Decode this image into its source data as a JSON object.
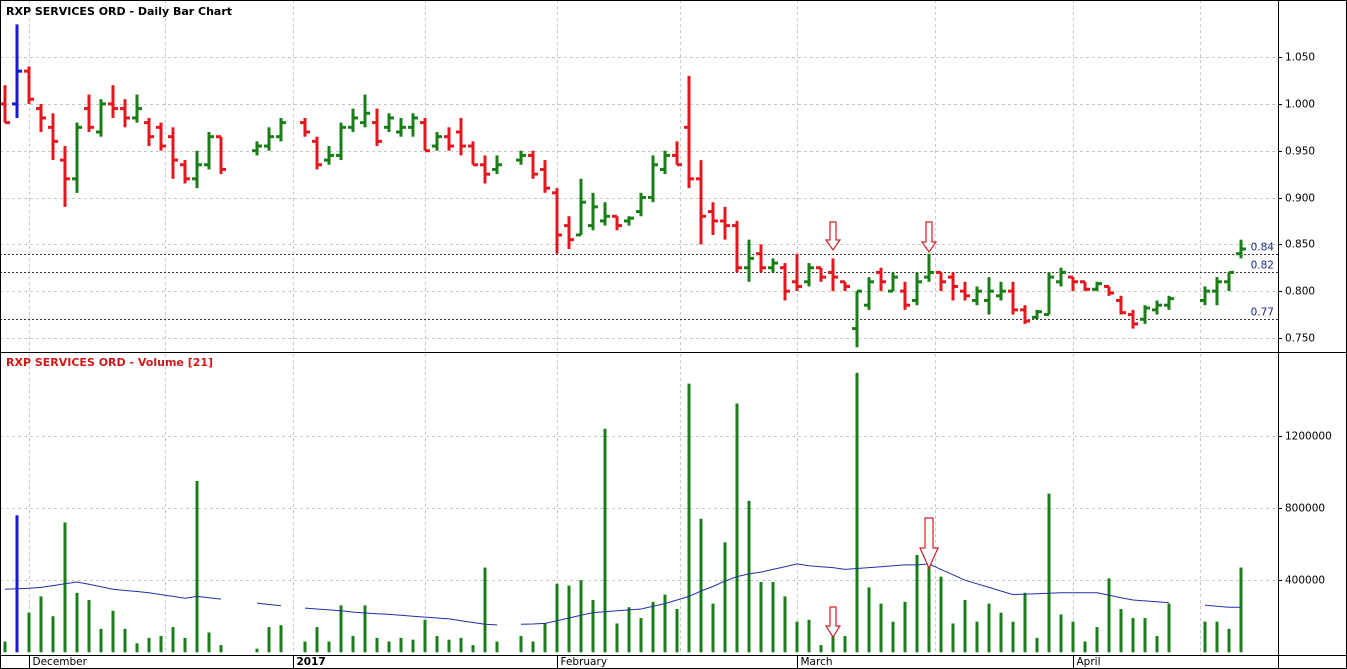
{
  "chart_data": [
    {
      "type": "ohlc",
      "title": "RXP SERVICES ORD - Daily Bar Chart",
      "open": [
        1.0,
        1.0,
        1.035,
        0.995,
        0.975,
        0.94,
        0.92,
        0.995,
        0.97,
        1.0,
        0.995,
        0.985,
        0.98,
        0.975,
        0.965,
        0.935,
        0.92,
        0.935,
        0.965,
        null,
        null,
        0.95,
        0.955,
        0.965,
        null,
        0.98,
        0.96,
        0.94,
        0.945,
        0.975,
        0.98,
        0.98,
        0.975,
        0.97,
        0.975,
        0.98,
        0.955,
        0.965,
        0.97,
        0.955,
        0.935,
        0.93,
        null,
        0.94,
        0.945,
        0.93,
        0.905,
        0.87,
        0.86,
        0.87,
        0.875,
        0.88,
        0.875,
        0.885,
        0.9,
        0.93,
        0.945,
        0.975,
        0.92,
        0.885,
        0.875,
        0.87,
        0.825,
        0.84,
        0.825,
        0.825,
        0.81,
        0.81,
        0.825,
        0.82,
        0.81,
        0.76,
        0.785,
        0.82,
        0.8,
        0.8,
        0.79,
        0.815,
        0.82,
        0.815,
        0.8,
        0.79,
        0.79,
        0.795,
        0.8,
        0.78,
        0.772,
        0.775,
        0.81,
        0.815,
        0.81,
        0.802,
        0.805,
        0.79,
        0.775,
        0.77,
        0.78,
        0.785,
        null,
        null,
        0.79,
        0.8,
        0.81,
        0.84
      ],
      "high": [
        1.02,
        1.085,
        1.04,
        1.0,
        0.99,
        0.955,
        0.98,
        1.01,
        1.005,
        1.02,
        1.005,
        1.01,
        0.985,
        0.98,
        0.975,
        0.94,
        0.95,
        0.97,
        0.965,
        null,
        null,
        0.96,
        0.975,
        0.985,
        null,
        0.985,
        0.965,
        0.955,
        0.98,
        0.995,
        1.01,
        0.995,
        0.99,
        0.985,
        0.99,
        0.985,
        0.97,
        0.975,
        0.985,
        0.96,
        0.945,
        0.945,
        null,
        0.95,
        0.95,
        0.94,
        0.91,
        0.88,
        0.92,
        0.905,
        0.895,
        0.88,
        0.88,
        0.905,
        0.945,
        0.95,
        0.96,
        1.03,
        0.94,
        0.895,
        0.89,
        0.875,
        0.855,
        0.85,
        0.835,
        0.83,
        0.84,
        0.83,
        0.825,
        0.835,
        0.81,
        0.8,
        0.815,
        0.825,
        0.82,
        0.81,
        0.82,
        0.84,
        0.82,
        0.82,
        0.81,
        0.805,
        0.815,
        0.81,
        0.81,
        0.785,
        0.78,
        0.82,
        0.825,
        0.815,
        0.81,
        0.81,
        0.805,
        0.795,
        0.78,
        0.785,
        0.79,
        0.795,
        null,
        null,
        0.805,
        0.815,
        0.82,
        0.855
      ],
      "low": [
        0.98,
        0.985,
        1.0,
        0.97,
        0.94,
        0.89,
        0.905,
        0.97,
        0.965,
        0.985,
        0.975,
        0.98,
        0.955,
        0.95,
        0.92,
        0.915,
        0.91,
        0.93,
        0.925,
        null,
        null,
        0.945,
        0.95,
        0.96,
        null,
        0.965,
        0.93,
        0.935,
        0.94,
        0.97,
        0.975,
        0.955,
        0.97,
        0.965,
        0.965,
        0.95,
        0.95,
        0.95,
        0.945,
        0.935,
        0.915,
        0.925,
        null,
        0.935,
        0.92,
        0.905,
        0.84,
        0.845,
        0.86,
        0.865,
        0.87,
        0.865,
        0.87,
        0.88,
        0.895,
        0.925,
        0.935,
        0.91,
        0.85,
        0.86,
        0.855,
        0.82,
        0.81,
        0.82,
        0.82,
        0.79,
        0.8,
        0.805,
        0.81,
        0.8,
        0.8,
        0.74,
        0.78,
        0.8,
        0.8,
        0.78,
        0.785,
        0.81,
        0.8,
        0.79,
        0.79,
        0.785,
        0.775,
        0.79,
        0.775,
        0.765,
        0.77,
        0.775,
        0.805,
        0.8,
        0.8,
        0.8,
        0.795,
        0.775,
        0.76,
        0.765,
        0.775,
        0.78,
        null,
        null,
        0.785,
        0.785,
        0.8,
        0.835
      ],
      "close": [
        0.98,
        1.035,
        1.005,
        0.985,
        0.96,
        0.92,
        0.975,
        0.975,
        1.0,
        0.995,
        0.985,
        0.995,
        0.965,
        0.955,
        0.94,
        0.92,
        0.935,
        0.965,
        0.93,
        null,
        null,
        0.955,
        0.965,
        0.98,
        null,
        0.97,
        0.935,
        0.945,
        0.975,
        0.985,
        0.99,
        0.96,
        0.985,
        0.975,
        0.985,
        0.95,
        0.965,
        0.955,
        0.955,
        0.935,
        0.925,
        0.935,
        null,
        0.945,
        0.925,
        0.91,
        0.86,
        0.855,
        0.895,
        0.89,
        0.88,
        0.87,
        0.878,
        0.9,
        0.935,
        0.945,
        0.935,
        0.92,
        0.88,
        0.875,
        0.87,
        0.825,
        0.835,
        0.825,
        0.83,
        0.8,
        0.805,
        0.825,
        0.815,
        0.815,
        0.805,
        0.8,
        0.81,
        0.81,
        0.815,
        0.785,
        0.81,
        0.82,
        0.81,
        0.805,
        0.795,
        0.8,
        0.8,
        0.8,
        0.78,
        0.768,
        0.778,
        0.815,
        0.82,
        0.81,
        0.802,
        0.808,
        0.798,
        0.777,
        0.765,
        0.782,
        0.785,
        0.792,
        null,
        null,
        0.8,
        0.81,
        0.82,
        0.845
      ],
      "up_color": "#1a7d1a",
      "down_color": "#e01820",
      "highlight_color": "#1a1acc",
      "highlight_index": 1,
      "levels": [
        0.84,
        0.82,
        0.77
      ],
      "level_color": "#1c2a80",
      "ylim": [
        0.735,
        1.111
      ],
      "yticks": [
        {
          "value": 0.75,
          "label": "0.750"
        },
        {
          "value": 0.8,
          "label": "0.800"
        },
        {
          "value": 0.85,
          "label": "0.850"
        },
        {
          "value": 0.9,
          "label": "0.900"
        },
        {
          "value": 0.95,
          "label": "0.950"
        },
        {
          "value": 1.0,
          "label": "1.000"
        },
        {
          "value": 1.05,
          "label": "1.050"
        }
      ],
      "grid": true
    },
    {
      "type": "volume",
      "title": "RXP SERVICES ORD - Volume [21]",
      "categories": [
        null,
        null,
        "December",
        null,
        null,
        null,
        null,
        null,
        null,
        null,
        null,
        null,
        null,
        null,
        null,
        null,
        null,
        null,
        null,
        null,
        null,
        null,
        null,
        null,
        "2017",
        null,
        null,
        null,
        null,
        null,
        null,
        null,
        null,
        null,
        null,
        null,
        null,
        null,
        null,
        null,
        null,
        null,
        null,
        null,
        null,
        null,
        "February",
        null,
        null,
        null,
        null,
        null,
        null,
        null,
        null,
        null,
        null,
        null,
        null,
        null,
        null,
        null,
        null,
        null,
        null,
        null,
        "March",
        null,
        null,
        null,
        null,
        null,
        null,
        null,
        null,
        null,
        null,
        null,
        null,
        null,
        null,
        null,
        null,
        null,
        null,
        null,
        null,
        null,
        null,
        "April",
        null,
        null,
        null,
        null,
        null,
        null,
        null,
        null,
        null,
        null,
        null,
        null,
        null,
        null
      ],
      "series": [
        {
          "type": "bar",
          "color": "#1a7d1a",
          "highlight_color": "#1a1acc",
          "highlight_index": 1,
          "values": [
            60000,
            760000,
            220000,
            310000,
            200000,
            720000,
            330000,
            290000,
            130000,
            230000,
            130000,
            50000,
            80000,
            90000,
            140000,
            80000,
            950000,
            110000,
            40000,
            null,
            null,
            20000,
            140000,
            150000,
            null,
            60000,
            140000,
            60000,
            260000,
            90000,
            260000,
            80000,
            60000,
            80000,
            70000,
            180000,
            90000,
            70000,
            80000,
            40000,
            470000,
            60000,
            null,
            90000,
            60000,
            160000,
            380000,
            370000,
            400000,
            290000,
            1240000,
            160000,
            250000,
            190000,
            280000,
            320000,
            240000,
            1490000,
            740000,
            270000,
            610000,
            1380000,
            840000,
            390000,
            390000,
            310000,
            170000,
            180000,
            40000,
            130000,
            90000,
            1550000,
            360000,
            270000,
            170000,
            280000,
            540000,
            520000,
            420000,
            160000,
            290000,
            170000,
            270000,
            220000,
            170000,
            330000,
            80000,
            880000,
            210000,
            170000,
            60000,
            140000,
            410000,
            240000,
            190000,
            190000,
            90000,
            270000,
            null,
            null,
            170000,
            170000,
            130000,
            470000
          ]
        },
        {
          "type": "line",
          "color": "#2030a8",
          "values": [
            350000,
            352000,
            355000,
            360000,
            370000,
            380000,
            390000,
            377000,
            363000,
            350000,
            343000,
            337000,
            330000,
            320000,
            310000,
            300000,
            310000,
            303000,
            295000,
            null,
            null,
            273000,
            265000,
            258000,
            null,
            245000,
            240000,
            235000,
            230000,
            223000,
            218000,
            214000,
            210000,
            205000,
            200000,
            195000,
            190000,
            185000,
            175000,
            165000,
            155000,
            152000,
            null,
            155000,
            157000,
            160000,
            175000,
            190000,
            205000,
            220000,
            225000,
            230000,
            235000,
            240000,
            255000,
            270000,
            290000,
            310000,
            340000,
            365000,
            395000,
            420000,
            435000,
            445000,
            460000,
            475000,
            490000,
            480000,
            475000,
            470000,
            460000,
            465000,
            470000,
            475000,
            480000,
            485000,
            485000,
            490000,
            460000,
            430000,
            400000,
            380000,
            360000,
            340000,
            320000,
            323000,
            325000,
            328000,
            330000,
            330000,
            330000,
            330000,
            317000,
            303000,
            290000,
            285000,
            280000,
            275000,
            null,
            null,
            262000,
            255000,
            250000,
            250000
          ]
        }
      ],
      "ylim": [
        -15000,
        1660000
      ],
      "yticks": [
        400000,
        800000,
        1200000
      ],
      "grid": true
    }
  ]
}
